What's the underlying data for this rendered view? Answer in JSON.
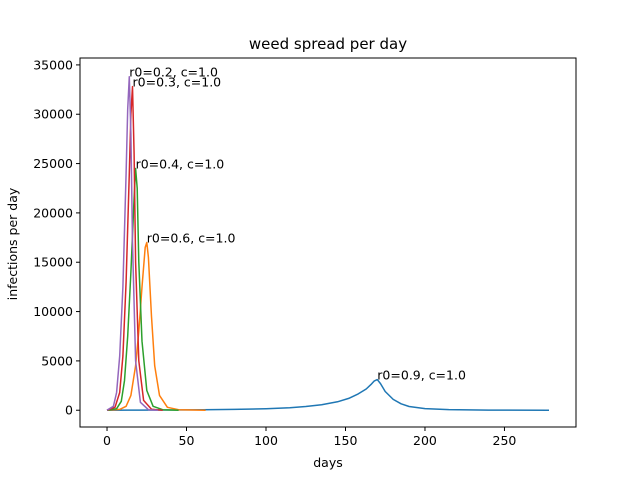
{
  "chart_data": {
    "type": "line",
    "title": "weed spread per day",
    "xlabel": "days",
    "ylabel": "infections per day",
    "xlim": [
      -17,
      295
    ],
    "ylim": [
      -1700,
      35700
    ],
    "xticks": [
      0,
      50,
      100,
      150,
      200,
      250
    ],
    "yticks": [
      0,
      5000,
      10000,
      15000,
      20000,
      25000,
      30000,
      35000
    ],
    "grid": false,
    "series": [
      {
        "color": "#1f77b4",
        "points": [
          [
            0,
            0
          ],
          [
            20,
            8
          ],
          [
            40,
            18
          ],
          [
            60,
            45
          ],
          [
            80,
            80
          ],
          [
            100,
            150
          ],
          [
            115,
            260
          ],
          [
            125,
            380
          ],
          [
            135,
            560
          ],
          [
            145,
            850
          ],
          [
            152,
            1200
          ],
          [
            158,
            1650
          ],
          [
            163,
            2150
          ],
          [
            166,
            2600
          ],
          [
            168,
            2950
          ],
          [
            170,
            3100
          ],
          [
            172,
            2700
          ],
          [
            175,
            1900
          ],
          [
            180,
            1100
          ],
          [
            185,
            650
          ],
          [
            190,
            380
          ],
          [
            200,
            160
          ],
          [
            215,
            60
          ],
          [
            240,
            15
          ],
          [
            278,
            0
          ]
        ]
      },
      {
        "color": "#ff7f0e",
        "points": [
          [
            0,
            0
          ],
          [
            8,
            80
          ],
          [
            12,
            400
          ],
          [
            15,
            1500
          ],
          [
            18,
            4500
          ],
          [
            20,
            8000
          ],
          [
            22,
            12500
          ],
          [
            24,
            16500
          ],
          [
            25,
            17000
          ],
          [
            26,
            15500
          ],
          [
            28,
            9500
          ],
          [
            30,
            4500
          ],
          [
            33,
            1500
          ],
          [
            38,
            300
          ],
          [
            45,
            50
          ],
          [
            62,
            0
          ]
        ]
      },
      {
        "color": "#2ca02c",
        "points": [
          [
            0,
            0
          ],
          [
            6,
            150
          ],
          [
            9,
            900
          ],
          [
            11,
            3000
          ],
          [
            13,
            7500
          ],
          [
            15,
            14000
          ],
          [
            17,
            21500
          ],
          [
            18,
            24500
          ],
          [
            19,
            22500
          ],
          [
            20,
            15000
          ],
          [
            22,
            7000
          ],
          [
            25,
            2000
          ],
          [
            29,
            400
          ],
          [
            35,
            50
          ],
          [
            45,
            0
          ]
        ]
      },
      {
        "color": "#d62728",
        "points": [
          [
            0,
            0
          ],
          [
            5,
            300
          ],
          [
            8,
            1800
          ],
          [
            10,
            5500
          ],
          [
            12,
            13000
          ],
          [
            14,
            24000
          ],
          [
            15,
            30000
          ],
          [
            16,
            32800
          ],
          [
            17,
            26000
          ],
          [
            18,
            15000
          ],
          [
            20,
            5000
          ],
          [
            23,
            1000
          ],
          [
            28,
            100
          ],
          [
            35,
            0
          ]
        ]
      },
      {
        "color": "#9467bd",
        "points": [
          [
            0,
            0
          ],
          [
            4,
            400
          ],
          [
            6,
            1800
          ],
          [
            8,
            5500
          ],
          [
            10,
            12500
          ],
          [
            12,
            24000
          ],
          [
            13,
            30500
          ],
          [
            14,
            33800
          ],
          [
            15,
            28000
          ],
          [
            16,
            17000
          ],
          [
            18,
            5000
          ],
          [
            21,
            800
          ],
          [
            26,
            50
          ],
          [
            32,
            0
          ]
        ]
      }
    ],
    "annotations": [
      {
        "text": "r0=0.2, c=1.0",
        "x": 14,
        "y": 33800
      },
      {
        "text": "r0=0.3, c=1.0",
        "x": 16,
        "y": 32800
      },
      {
        "text": "r0=0.4, c=1.0",
        "x": 18,
        "y": 24500
      },
      {
        "text": "r0=0.6, c=1.0",
        "x": 25,
        "y": 17000
      },
      {
        "text": "r0=0.9, c=1.0",
        "x": 170,
        "y": 3100
      }
    ]
  }
}
